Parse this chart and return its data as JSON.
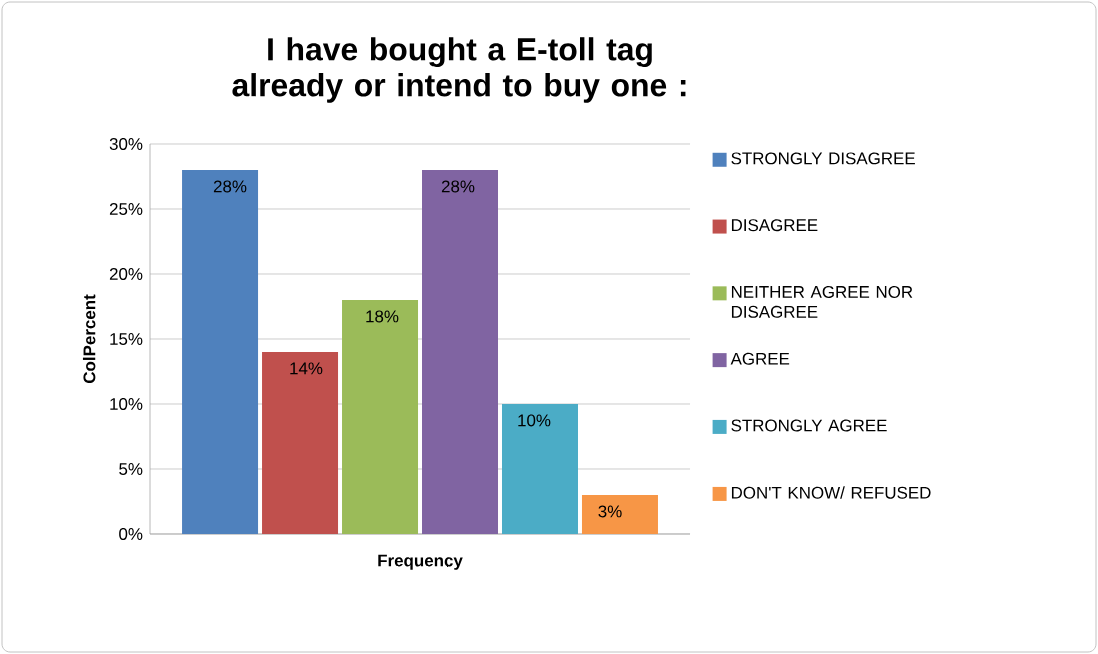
{
  "chart_data": {
    "type": "bar",
    "title": "I have bought a E-toll tag already or intend to buy one :",
    "xlabel": "Frequency",
    "ylabel": "ColPercent",
    "categories": [
      null
    ],
    "series": [
      {
        "name": "STRONGLY DISAGREE",
        "color": "#4f81bd",
        "values": [
          28
        ],
        "value_labels": [
          "28%"
        ]
      },
      {
        "name": "DISAGREE",
        "color": "#c0504d",
        "values": [
          14
        ],
        "value_labels": [
          "14%"
        ]
      },
      {
        "name": "NEITHER AGREE NOR DISAGREE",
        "color": "#9bbb59",
        "values": [
          18
        ],
        "value_labels": [
          "18%"
        ]
      },
      {
        "name": "AGREE",
        "color": "#8064a2",
        "values": [
          28
        ],
        "value_labels": [
          "28%"
        ]
      },
      {
        "name": "STRONGLY AGREE",
        "color": "#4bacc6",
        "values": [
          10
        ],
        "value_labels": [
          "10%"
        ]
      },
      {
        "name": "DON'T KNOW/ REFUSED",
        "color": "#f79646",
        "values": [
          3
        ],
        "value_labels": [
          "3%"
        ]
      }
    ],
    "ylim": [
      0,
      30
    ],
    "yticks": [
      {
        "value": 0,
        "label": "0%"
      },
      {
        "value": 5,
        "label": "5%"
      },
      {
        "value": 10,
        "label": "10%"
      },
      {
        "value": 15,
        "label": "15%"
      },
      {
        "value": 20,
        "label": "20%"
      },
      {
        "value": 25,
        "label": "25%"
      },
      {
        "value": 30,
        "label": "30%"
      }
    ],
    "grid": "y",
    "legend": "right"
  }
}
